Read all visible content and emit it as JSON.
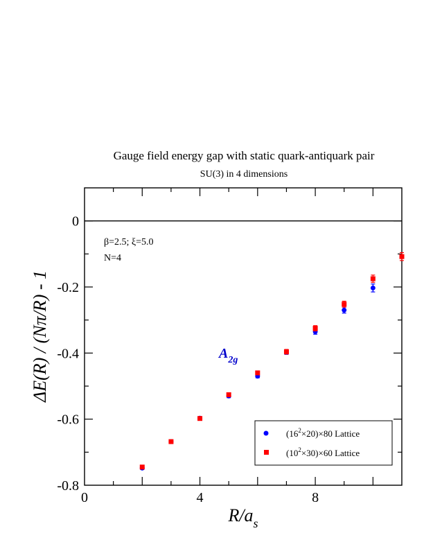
{
  "chart_data": {
    "type": "scatter",
    "title": "Gauge field energy gap with static quark-antiquark pair",
    "subtitle": "SU(3) in 4 dimensions",
    "xlabel": {
      "main": "R/a",
      "sub": "s"
    },
    "ylabel": "ΔE(R) / (Nπ/R) - 1",
    "xlim": [
      0,
      11
    ],
    "ylim": [
      -0.8,
      0.1
    ],
    "x_ticks": [
      0,
      4,
      8
    ],
    "x_tick_labels": [
      "0",
      "4",
      "8"
    ],
    "y_ticks": [
      -0.8,
      -0.6,
      -0.4,
      -0.2,
      0
    ],
    "y_tick_labels": [
      "-0.8",
      "-0.6",
      "-0.4",
      "-0.2",
      "0"
    ],
    "reference_line_y": 0,
    "grid": false,
    "legend_position": "bottom-right",
    "annotations": {
      "params_line1": "β=2.5;  ξ=5.0",
      "params_line2": "N=4",
      "state_label": {
        "main": "A",
        "sub": "2g"
      }
    },
    "colors": {
      "blue": "#0000ff",
      "red": "#ff0000",
      "state_label": "#0000cc"
    },
    "series": [
      {
        "name": "(16²×20)×80 Lattice",
        "legend": {
          "pre": "(16",
          "sup": "2",
          "post": "×20)×80 Lattice"
        },
        "marker": "circle",
        "color": "#0000ff",
        "x": [
          2,
          3,
          4,
          5,
          6,
          7,
          8,
          9,
          10
        ],
        "y": [
          -0.748,
          -0.668,
          -0.597,
          -0.53,
          -0.47,
          -0.397,
          -0.335,
          -0.27,
          -0.203
        ],
        "err": [
          0.004,
          0.004,
          0.004,
          0.005,
          0.005,
          0.007,
          0.008,
          0.009,
          0.012
        ]
      },
      {
        "name": "(10²×30)×60 Lattice",
        "legend": {
          "pre": "(10",
          "sup": "2",
          "post": "×30)×60 Lattice"
        },
        "marker": "square",
        "color": "#ff0000",
        "x": [
          2,
          3,
          4,
          5,
          6,
          7,
          8,
          9,
          10,
          11
        ],
        "y": [
          -0.745,
          -0.668,
          -0.598,
          -0.526,
          -0.46,
          -0.396,
          -0.325,
          -0.252,
          -0.175,
          -0.108
        ],
        "err": [
          0.004,
          0.004,
          0.004,
          0.005,
          0.005,
          0.007,
          0.008,
          0.009,
          0.011,
          0.012
        ]
      }
    ]
  }
}
